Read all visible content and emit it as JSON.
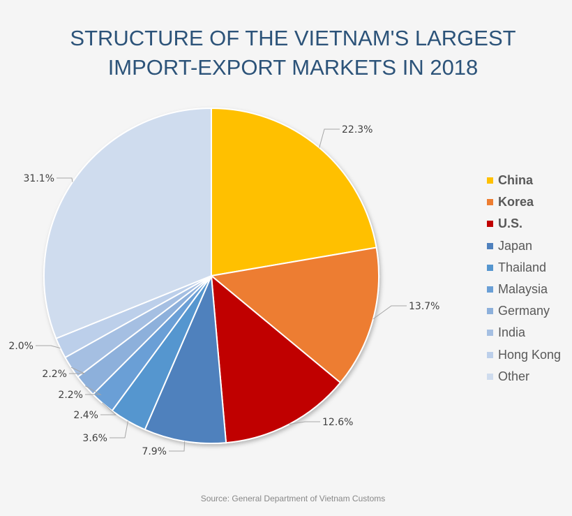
{
  "title": {
    "line1": "STRUCTURE OF THE VIETNAM'S LARGEST",
    "line2": "IMPORT-EXPORT MARKETS IN 2018"
  },
  "source": "Source: General Department of Vietnam Customs",
  "legend": {
    "items": [
      {
        "label": "China",
        "color": "#ffc000",
        "bold": true
      },
      {
        "label": "Korea",
        "color": "#ed7d31",
        "bold": true
      },
      {
        "label": "U.S.",
        "color": "#c00000",
        "bold": true
      },
      {
        "label": "Japan",
        "color": "#4f81bd",
        "bold": false
      },
      {
        "label": "Thailand",
        "color": "#5596cf",
        "bold": false
      },
      {
        "label": "Malaysia",
        "color": "#6a9fd6",
        "bold": false
      },
      {
        "label": "Germany",
        "color": "#8db0db",
        "bold": false
      },
      {
        "label": "India",
        "color": "#a5bfe2",
        "bold": false
      },
      {
        "label": "Hong Kong",
        "color": "#bccfea",
        "bold": false
      },
      {
        "label": "Other",
        "color": "#cfdcee",
        "bold": false
      }
    ]
  },
  "chart_data": {
    "type": "pie",
    "title": "STRUCTURE OF THE VIETNAM'S LARGEST IMPORT-EXPORT MARKETS IN 2018",
    "categories": [
      "China",
      "Korea",
      "U.S.",
      "Japan",
      "Thailand",
      "Malaysia",
      "Germany",
      "India",
      "Hong Kong",
      "Other"
    ],
    "values": [
      22.3,
      13.7,
      12.6,
      7.9,
      3.6,
      2.4,
      2.2,
      2.2,
      2.0,
      31.1
    ],
    "labels": [
      "22.3%",
      "13.7%",
      "12.6%",
      "7.9%",
      "3.6%",
      "2.4%",
      "2.2%",
      "2.2%",
      "2.0%",
      "31.1%"
    ],
    "colors": [
      "#ffc000",
      "#ed7d31",
      "#c00000",
      "#4f81bd",
      "#5596cf",
      "#6a9fd6",
      "#8db0db",
      "#a5bfe2",
      "#bccfea",
      "#cfdcee"
    ],
    "start_angle": "12 o'clock, clockwise",
    "legend_position": "right",
    "source": "Source: General Department of Vietnam Customs"
  }
}
